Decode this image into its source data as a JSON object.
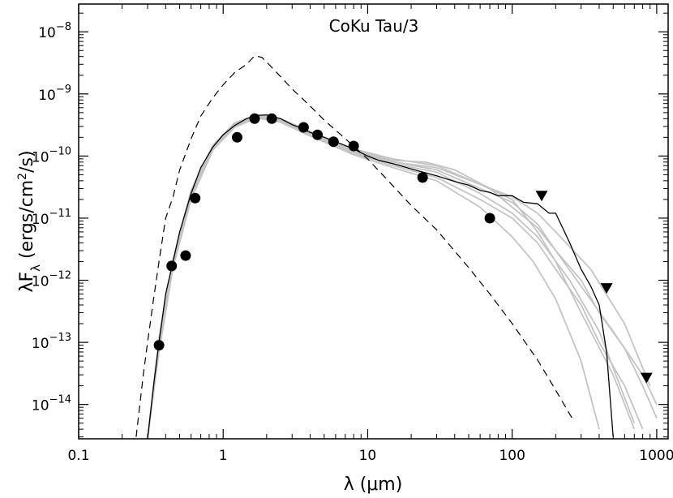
{
  "chart_data": {
    "type": "line",
    "title": "CoKu Tau/3",
    "xlabel": "λ (μm)",
    "ylabel": "λF_λ (ergs/cm²/s)",
    "xscale": "log",
    "yscale": "log",
    "xlim": [
      0.1,
      1200
    ],
    "ylim": [
      2.8e-15,
      2.8e-08
    ],
    "x_ticks": [
      {
        "value": 0.1,
        "label": "0.1"
      },
      {
        "value": 1,
        "label": "1"
      },
      {
        "value": 10,
        "label": "10"
      },
      {
        "value": 100,
        "label": "100"
      },
      {
        "value": 1000,
        "label": "1000"
      }
    ],
    "y_ticks": [
      {
        "value": 1e-14,
        "mant": "10",
        "exp": "−14"
      },
      {
        "value": 1e-13,
        "mant": "10",
        "exp": "−13"
      },
      {
        "value": 1e-12,
        "mant": "10",
        "exp": "−12"
      },
      {
        "value": 1e-11,
        "mant": "10",
        "exp": "−11"
      },
      {
        "value": 1e-10,
        "mant": "10",
        "exp": "−10"
      },
      {
        "value": 1e-09,
        "mant": "10",
        "exp": "−9"
      },
      {
        "value": 1e-08,
        "mant": "10",
        "exp": "−8"
      }
    ],
    "series": [
      {
        "kind": "observed_fluxes",
        "marker": "filled-circle",
        "x": [
          0.36,
          0.44,
          0.55,
          0.64,
          1.25,
          1.65,
          2.17,
          3.6,
          4.5,
          5.8,
          8.0,
          24,
          70
        ],
        "y": [
          9e-14,
          1.7e-12,
          2.5e-12,
          2.1e-11,
          2e-10,
          4e-10,
          4e-10,
          2.9e-10,
          2.2e-10,
          1.7e-10,
          1.45e-10,
          4.5e-11,
          1e-11
        ]
      },
      {
        "kind": "upper_limits",
        "marker": "down-triangle",
        "x": [
          160,
          450,
          850
        ],
        "y": [
          2.3e-11,
          7.5e-13,
          2.7e-14
        ]
      },
      {
        "kind": "stellar_photosphere",
        "style": "dashed",
        "x": [
          0.25,
          0.28,
          0.3,
          0.33,
          0.36,
          0.4,
          0.45,
          0.5,
          0.6,
          0.7,
          0.85,
          1.0,
          1.2,
          1.45,
          1.65,
          1.85,
          2.1,
          2.5,
          3.0,
          4.0,
          5.0,
          7.0,
          10,
          15,
          20,
          30,
          50,
          70,
          100,
          150,
          200,
          260
        ],
        "y": [
          3e-15,
          3e-14,
          1e-13,
          5e-13,
          2e-12,
          1e-11,
          2.2e-11,
          6e-11,
          1.9e-10,
          4.4e-10,
          8.7e-10,
          1.4e-09,
          2.2e-09,
          3e-09,
          4.1e-09,
          3.9e-09,
          2.9e-09,
          1.9e-09,
          1.2e-09,
          6.4e-10,
          3.8e-10,
          1.9e-10,
          9e-11,
          3.3e-11,
          1.6e-11,
          6.5e-12,
          1.6e-12,
          6e-13,
          2e-13,
          5.2e-14,
          1.7e-14,
          6e-15
        ]
      },
      {
        "kind": "best_fit_model",
        "style": "solid-black",
        "x": [
          0.3,
          0.33,
          0.36,
          0.4,
          0.45,
          0.5,
          0.6,
          0.7,
          0.85,
          1.0,
          1.2,
          1.45,
          1.7,
          2.0,
          2.5,
          3.0,
          3.5,
          4.0,
          5.0,
          6.0,
          8.0,
          10,
          12,
          15,
          20,
          30,
          40,
          50,
          60,
          70,
          80,
          100,
          120,
          150,
          180,
          200,
          250,
          300,
          350,
          400,
          450,
          500
        ],
        "y": [
          2.8e-15,
          2e-14,
          1e-13,
          6e-13,
          2e-12,
          6e-12,
          2.5e-11,
          6.5e-11,
          1.4e-10,
          2.2e-10,
          3.1e-10,
          4e-10,
          4.5e-10,
          4.6e-10,
          4e-10,
          3.2e-10,
          2.8e-10,
          2.4e-10,
          2e-10,
          1.7e-10,
          1.3e-10,
          1e-10,
          8.5e-11,
          7.5e-11,
          6.2e-11,
          4.8e-11,
          3.9e-11,
          3.4e-11,
          2.8e-11,
          2.6e-11,
          2.3e-11,
          2.3e-11,
          1.8e-11,
          1.7e-11,
          1.2e-11,
          1.2e-11,
          4e-12,
          1.5e-12,
          8e-13,
          4e-13,
          7e-14,
          3e-15
        ]
      },
      {
        "kind": "model_fits",
        "style": "gray",
        "curves": [
          {
            "x": [
              0.3,
              0.36,
              0.45,
              0.6,
              0.85,
              1.2,
              1.7,
              2.5,
              4.0,
              8.0,
              15,
              30,
              60,
              100,
              150,
              200,
              300,
              400,
              600,
              800,
              1000
            ],
            "y": [
              2.8e-15,
              1e-13,
              2e-12,
              2.5e-11,
              1.4e-10,
              3.2e-10,
              4.4e-10,
              3.8e-10,
              2.3e-10,
              1.2e-10,
              8e-11,
              6e-11,
              3e-11,
              1.8e-11,
              8e-12,
              3e-12,
              1e-12,
              3e-13,
              8e-14,
              2e-14,
              6e-15
            ]
          },
          {
            "x": [
              0.3,
              0.36,
              0.45,
              0.6,
              0.85,
              1.2,
              1.7,
              2.5,
              4.0,
              8.0,
              15,
              30,
              60,
              100,
              150,
              200,
              300,
              400,
              600,
              800
            ],
            "y": [
              2.8e-15,
              8e-14,
              1.8e-12,
              2.2e-11,
              1.3e-10,
              3e-10,
              4.2e-10,
              3.6e-10,
              2.2e-10,
              1.1e-10,
              7e-11,
              4.5e-11,
              2e-11,
              1e-11,
              4e-12,
              1.5e-12,
              4e-13,
              1e-13,
              2e-14,
              4e-15
            ]
          },
          {
            "x": [
              0.3,
              0.36,
              0.45,
              0.6,
              0.85,
              1.2,
              1.7,
              2.5,
              4.0,
              8.0,
              15,
              30,
              60,
              100,
              150,
              200,
              300,
              500,
              700
            ],
            "y": [
              2.8e-15,
              1.2e-13,
              2.2e-12,
              2.8e-11,
              1.5e-10,
              3.4e-10,
              4.6e-10,
              4e-10,
              2.5e-10,
              1.3e-10,
              9e-11,
              7e-11,
              3.5e-11,
              2e-11,
              6e-12,
              2e-12,
              3e-13,
              3e-14,
              4e-15
            ]
          },
          {
            "x": [
              0.3,
              0.36,
              0.45,
              0.6,
              0.85,
              1.2,
              1.7,
              2.5,
              4.0,
              8.0,
              15,
              30,
              60,
              100,
              150,
              250,
              400,
              700
            ],
            "y": [
              2.8e-15,
              9e-14,
              1.9e-12,
              2.4e-11,
              1.35e-10,
              3.1e-10,
              4.3e-10,
              3.7e-10,
              2.25e-10,
              1.15e-10,
              7.5e-11,
              5.5e-11,
              2.5e-11,
              1.2e-11,
              5e-12,
              1e-12,
              1.5e-13,
              5e-15
            ]
          },
          {
            "x": [
              0.3,
              0.36,
              0.45,
              0.6,
              0.85,
              1.2,
              1.7,
              2.5,
              4.0,
              8.0,
              15,
              25,
              40,
              70,
              100,
              150,
              200,
              300,
              500,
              800,
              1000
            ],
            "y": [
              2.8e-15,
              1.1e-13,
              2.1e-12,
              2.6e-11,
              1.45e-10,
              3.3e-10,
              4.5e-10,
              3.9e-10,
              2.4e-10,
              1.25e-10,
              8.5e-11,
              8e-11,
              6e-11,
              3e-11,
              1.5e-11,
              7e-12,
              3e-12,
              8e-13,
              1.5e-13,
              3e-14,
              1e-14
            ]
          },
          {
            "x": [
              0.3,
              0.36,
              0.45,
              0.6,
              0.85,
              1.2,
              1.7,
              2.5,
              4.0,
              8.0,
              15,
              30,
              60,
              100,
              140,
              200,
              300,
              400
            ],
            "y": [
              2.8e-15,
              7e-14,
              1.6e-12,
              2e-11,
              1.25e-10,
              2.9e-10,
              4.1e-10,
              3.5e-10,
              2.1e-10,
              1.05e-10,
              6.5e-11,
              4e-11,
              1.5e-11,
              5e-12,
              2e-12,
              5e-13,
              5e-14,
              4e-15
            ]
          },
          {
            "x": [
              0.3,
              0.36,
              0.45,
              0.6,
              0.85,
              1.2,
              1.7,
              2.5,
              4.0,
              8.0,
              15,
              30,
              60,
              100,
              150,
              200,
              350,
              600,
              900
            ],
            "y": [
              2.8e-15,
              1e-13,
              2e-12,
              2.5e-11,
              1.4e-10,
              3.2e-10,
              4.4e-10,
              3.8e-10,
              2.3e-10,
              1.2e-10,
              8e-11,
              6.5e-11,
              3.5e-11,
              2.2e-11,
              1.2e-11,
              6e-12,
              1.5e-12,
              2e-13,
              2e-14
            ]
          }
        ]
      }
    ],
    "grid": false,
    "legend": "none"
  }
}
